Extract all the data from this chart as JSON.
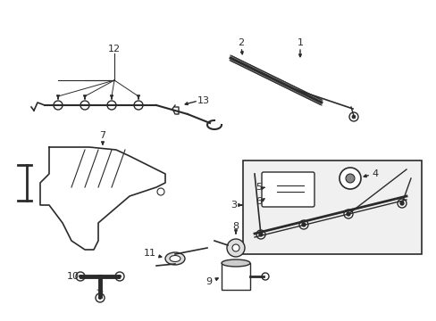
{
  "bg_color": "#ffffff",
  "line_color": "#2a2a2a",
  "lw": 1.0,
  "figsize": [
    4.89,
    3.6
  ],
  "dpi": 100
}
